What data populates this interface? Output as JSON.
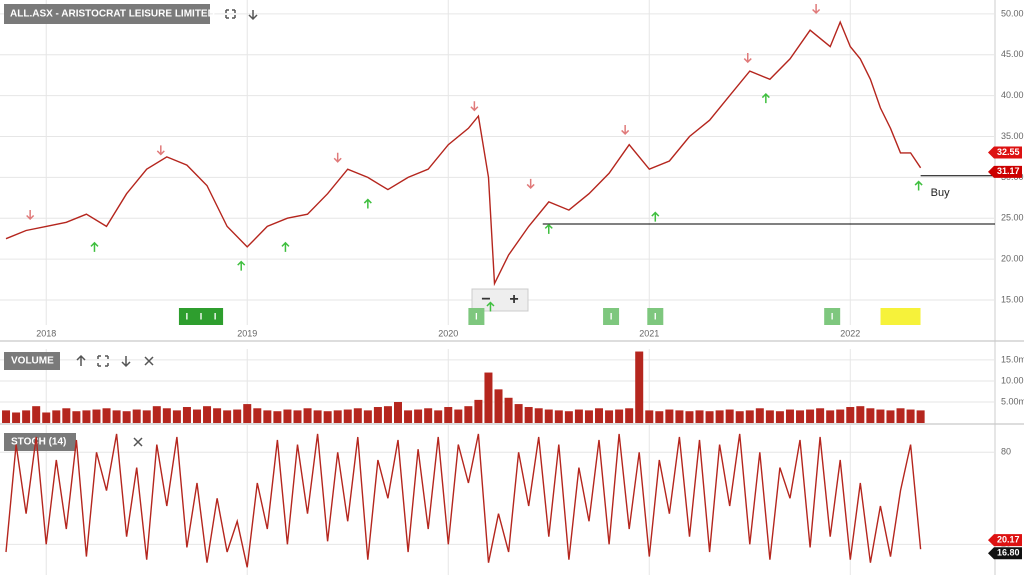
{
  "chart_data": [
    {
      "type": "line",
      "title": "ALL.ASX - ARISTOCRAT LEISURE LIMITED",
      "x": [
        2017.8,
        2017.9,
        2018,
        2018.1,
        2018.2,
        2018.3,
        2018.4,
        2018.5,
        2018.6,
        2018.7,
        2018.8,
        2018.9,
        2019,
        2019.1,
        2019.2,
        2019.3,
        2019.4,
        2019.5,
        2019.6,
        2019.7,
        2019.8,
        2019.9,
        2020,
        2020.1,
        2020.15,
        2020.2,
        2020.23,
        2020.3,
        2020.4,
        2020.5,
        2020.6,
        2020.7,
        2020.8,
        2020.9,
        2021,
        2021.1,
        2021.2,
        2021.3,
        2021.4,
        2021.5,
        2021.6,
        2021.7,
        2021.8,
        2021.9,
        2021.95,
        2022,
        2022.05,
        2022.1,
        2022.15,
        2022.2,
        2022.25,
        2022.3,
        2022.35
      ],
      "series": [
        {
          "color": "#b5261e",
          "values": [
            22.5,
            23.5,
            24,
            24.5,
            25.5,
            24,
            28,
            31,
            32.5,
            31.5,
            29,
            24,
            21.5,
            24,
            25,
            25.5,
            28,
            31,
            30,
            28.5,
            30,
            31,
            34,
            36,
            37.5,
            30,
            17,
            20.5,
            24,
            27,
            26,
            28,
            30.5,
            34,
            31,
            32,
            35,
            37,
            40,
            43,
            42,
            44.5,
            48,
            46,
            49,
            46,
            44.5,
            42,
            38.5,
            36,
            33,
            33,
            31.17
          ]
        }
      ],
      "xlim": [
        2017.77,
        2022.72
      ],
      "xticks": [
        2018,
        2019,
        2020,
        2021,
        2022
      ],
      "ylim": [
        11.94,
        51.7
      ],
      "yticks": [
        {
          "value": 15,
          "label": "15.00"
        },
        {
          "value": 20,
          "label": "20.00"
        },
        {
          "value": 25,
          "label": "25.00"
        },
        {
          "value": 30,
          "label": "30.00"
        },
        {
          "value": 35,
          "label": "35.00"
        },
        {
          "value": 40,
          "label": "40.00"
        },
        {
          "value": 45,
          "label": "45.00"
        },
        {
          "value": 50,
          "label": "50.00"
        }
      ],
      "grid": true,
      "levels": [
        {
          "value": 24.3,
          "from": 2020.47
        },
        {
          "value": 30.2,
          "from": 2022.35
        }
      ],
      "signals": {
        "down": {
          "x": [
            2017.92,
            2018.57,
            2019.45,
            2020.13,
            2020.41,
            2020.88,
            2021.49,
            2021.83
          ],
          "y": [
            25.4,
            33.3,
            32.4,
            38.7,
            29.2,
            35.8,
            44.6,
            50.6
          ]
        },
        "up": {
          "x": [
            2018.24,
            2018.97,
            2019.19,
            2019.6,
            2020.21,
            2020.5,
            2021.03,
            2021.58,
            2022.34
          ],
          "y": [
            21.5,
            19.2,
            21.5,
            26.8,
            14.2,
            23.7,
            25.2,
            39.7,
            29.0
          ]
        }
      },
      "annotation": {
        "text": "Buy",
        "x": 2022.4,
        "y": 28.1
      },
      "events": [
        2018.7,
        2018.77,
        2018.84,
        2020.14,
        2020.81,
        2021.03,
        2021.91
      ],
      "event_label": "I",
      "highlight": 2022.25,
      "last_values": [
        32.55,
        31.17
      ],
      "zoom_out": "−",
      "zoom_in": "+"
    },
    {
      "type": "bar",
      "title": "VOLUME",
      "x": [
        2017.8,
        2017.85,
        2017.9,
        2017.95,
        2018,
        2018.05,
        2018.1,
        2018.15,
        2018.2,
        2018.25,
        2018.3,
        2018.35,
        2018.4,
        2018.45,
        2018.5,
        2018.55,
        2018.6,
        2018.65,
        2018.7,
        2018.75,
        2018.8,
        2018.85,
        2018.9,
        2018.95,
        2019,
        2019.05,
        2019.1,
        2019.15,
        2019.2,
        2019.25,
        2019.3,
        2019.35,
        2019.4,
        2019.45,
        2019.5,
        2019.55,
        2019.6,
        2019.65,
        2019.7,
        2019.75,
        2019.8,
        2019.85,
        2019.9,
        2019.95,
        2020,
        2020.05,
        2020.1,
        2020.15,
        2020.2,
        2020.25,
        2020.3,
        2020.35,
        2020.4,
        2020.45,
        2020.5,
        2020.55,
        2020.6,
        2020.65,
        2020.7,
        2020.75,
        2020.8,
        2020.85,
        2020.9,
        2020.95,
        2021,
        2021.05,
        2021.1,
        2021.15,
        2021.2,
        2021.25,
        2021.3,
        2021.35,
        2021.4,
        2021.45,
        2021.5,
        2021.55,
        2021.6,
        2021.65,
        2021.7,
        2021.75,
        2021.8,
        2021.85,
        2021.9,
        2021.95,
        2022,
        2022.05,
        2022.1,
        2022.15,
        2022.2,
        2022.25,
        2022.3,
        2022.35
      ],
      "color": "#b5261e",
      "values": [
        3,
        2.5,
        3,
        4,
        2.5,
        3,
        3.5,
        2.8,
        3,
        3.2,
        3.5,
        3,
        2.8,
        3.2,
        3,
        4,
        3.5,
        3,
        3.8,
        3.2,
        4,
        3.5,
        3,
        3.2,
        4.5,
        3.5,
        3,
        2.8,
        3.2,
        3,
        3.5,
        3,
        2.8,
        3,
        3.2,
        3.5,
        3,
        3.8,
        4,
        5,
        3,
        3.2,
        3.5,
        3,
        3.8,
        3.2,
        4,
        5.5,
        12,
        8,
        6,
        4.5,
        3.8,
        3.5,
        3.2,
        3,
        2.8,
        3.2,
        3,
        3.5,
        3,
        3.2,
        3.5,
        17,
        3,
        2.8,
        3.2,
        3,
        2.8,
        3,
        2.8,
        3,
        3.2,
        2.8,
        3,
        3.5,
        3,
        2.8,
        3.2,
        3,
        3.2,
        3.5,
        3,
        3.2,
        3.8,
        4,
        3.5,
        3.2,
        3,
        3.5,
        3.2,
        3
      ],
      "xlim": [
        2017.77,
        2022.72
      ],
      "ylim": [
        0,
        17.6
      ],
      "yticks": [
        {
          "value": 5,
          "label": "5.00m"
        },
        {
          "value": 10,
          "label": "10.00m"
        },
        {
          "value": 15,
          "label": "15.0m"
        }
      ]
    },
    {
      "type": "line",
      "title": "STOCH (14)",
      "x": [
        2017.8,
        2017.85,
        2017.9,
        2017.95,
        2018,
        2018.05,
        2018.1,
        2018.15,
        2018.2,
        2018.25,
        2018.3,
        2018.35,
        2018.4,
        2018.45,
        2018.5,
        2018.55,
        2018.6,
        2018.65,
        2018.7,
        2018.75,
        2018.8,
        2018.85,
        2018.9,
        2018.95,
        2019,
        2019.05,
        2019.1,
        2019.15,
        2019.2,
        2019.25,
        2019.3,
        2019.35,
        2019.4,
        2019.45,
        2019.5,
        2019.55,
        2019.6,
        2019.65,
        2019.7,
        2019.75,
        2019.8,
        2019.85,
        2019.9,
        2019.95,
        2020,
        2020.05,
        2020.1,
        2020.15,
        2020.2,
        2020.25,
        2020.3,
        2020.35,
        2020.4,
        2020.45,
        2020.5,
        2020.55,
        2020.6,
        2020.65,
        2020.7,
        2020.75,
        2020.8,
        2020.85,
        2020.9,
        2020.95,
        2021,
        2021.05,
        2021.1,
        2021.15,
        2021.2,
        2021.25,
        2021.3,
        2021.35,
        2021.4,
        2021.45,
        2021.5,
        2021.55,
        2021.6,
        2021.65,
        2021.7,
        2021.75,
        2021.8,
        2021.85,
        2021.9,
        2021.95,
        2022,
        2022.05,
        2022.1,
        2022.15,
        2022.2,
        2022.25,
        2022.3,
        2022.35
      ],
      "series": [
        {
          "color": "#b5261e",
          "values": [
            15,
            85,
            40,
            90,
            20,
            75,
            30,
            88,
            12,
            80,
            55,
            92,
            25,
            70,
            10,
            85,
            45,
            90,
            18,
            60,
            8,
            50,
            15,
            35,
            5,
            60,
            30,
            88,
            20,
            85,
            40,
            92,
            22,
            80,
            35,
            90,
            10,
            75,
            50,
            88,
            15,
            82,
            30,
            90,
            20,
            85,
            60,
            92,
            8,
            40,
            15,
            80,
            45,
            90,
            25,
            85,
            10,
            70,
            35,
            88,
            20,
            92,
            30,
            80,
            12,
            75,
            40,
            90,
            25,
            88,
            15,
            85,
            45,
            92,
            20,
            80,
            10,
            70,
            50,
            88,
            18,
            90,
            25,
            75,
            10,
            60,
            8,
            45,
            12,
            55,
            85,
            16.8
          ]
        }
      ],
      "xlim": [
        2017.77,
        2022.72
      ],
      "ylim": [
        0,
        97.8
      ],
      "yticks": [
        20,
        80
      ],
      "grid": true,
      "last_values": [
        20.17,
        16.8
      ],
      "last_value_labels": [
        "20.17",
        "16.80"
      ]
    }
  ]
}
